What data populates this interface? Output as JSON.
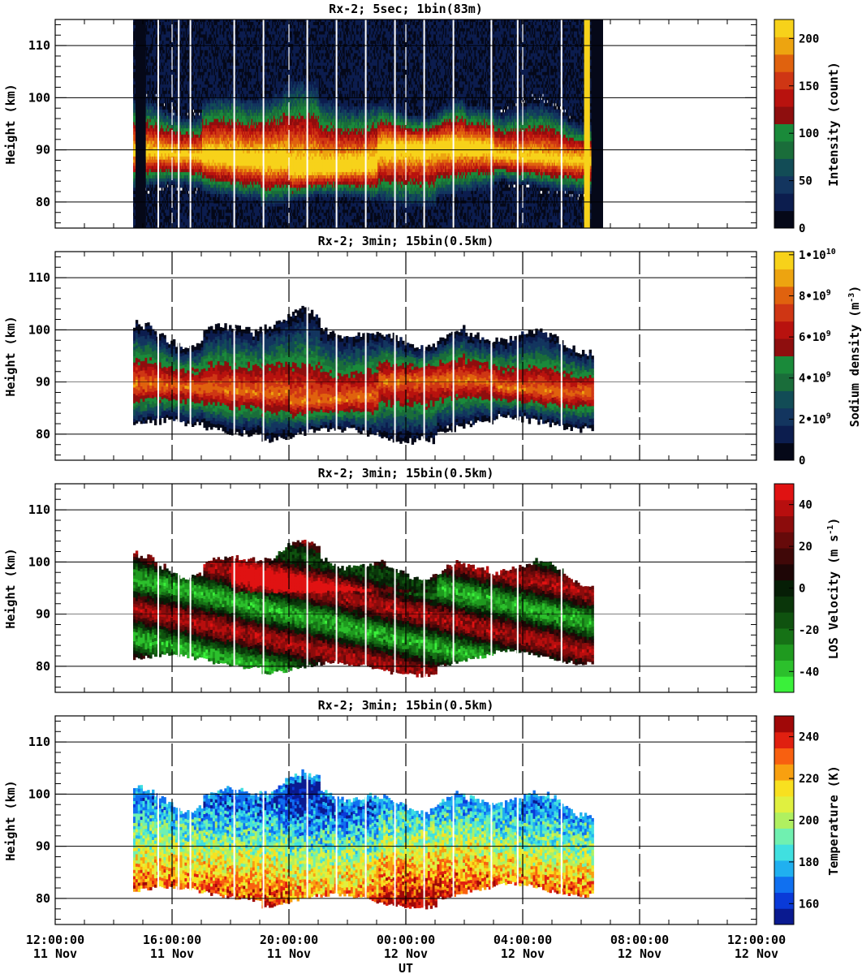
{
  "chart_data": [
    {
      "type": "heatmap",
      "title": "Rx-2;  5sec; 1bin(83m)",
      "ylabel": "Height (km)",
      "ylim": [
        75,
        115
      ],
      "yticks": [
        "80",
        "90",
        "100",
        "110"
      ],
      "colorbar": {
        "label": "Intensity (count)",
        "ticks": [
          "0",
          "50",
          "100",
          "150",
          "200"
        ],
        "colors": [
          "#050818",
          "#0c1d4e",
          "#13355f",
          "#124c56",
          "#1a6d3a",
          "#1a8a3a",
          "#8e0e0e",
          "#b8120e",
          "#cf3614",
          "#e0620e",
          "#eda410",
          "#f7d21a"
        ]
      },
      "data_window": [
        "14:40:00",
        "06:25:00"
      ]
    },
    {
      "type": "heatmap",
      "title": "Rx-2; 3min; 15bin(0.5km)",
      "ylabel": "Height (km)",
      "ylim": [
        75,
        115
      ],
      "yticks": [
        "80",
        "90",
        "100",
        "110"
      ],
      "colorbar": {
        "label_main": "Sodium density (m",
        "label_sup": "-3",
        "label_end": ")",
        "ticks": [
          {
            "base": "0",
            "exp": ""
          },
          {
            "base": "2•10",
            "exp": "9"
          },
          {
            "base": "4•10",
            "exp": "9"
          },
          {
            "base": "6•10",
            "exp": "9"
          },
          {
            "base": "8•10",
            "exp": "9"
          },
          {
            "base": "1•10",
            "exp": "10"
          }
        ],
        "colors": [
          "#050818",
          "#0c1d4e",
          "#13355f",
          "#124c56",
          "#1a6d3a",
          "#1a8a3a",
          "#8e0e0e",
          "#b8120e",
          "#cf3614",
          "#e0620e",
          "#eda410",
          "#f7d21a"
        ]
      },
      "data_window": [
        "14:40:00",
        "06:25:00"
      ]
    },
    {
      "type": "heatmap",
      "title": "Rx-2; 3min; 15bin(0.5km)",
      "ylabel": "Height (km)",
      "ylim": [
        75,
        115
      ],
      "yticks": [
        "80",
        "90",
        "100",
        "110"
      ],
      "colorbar": {
        "label_main": "LOS Velocity (m s",
        "label_sup": "-1",
        "label_end": ")",
        "ticks": [
          "-40",
          "-20",
          "0",
          "20",
          "40"
        ],
        "colors": [
          "#3af03a",
          "#2cc02c",
          "#1f9a1f",
          "#167216",
          "#0f520f",
          "#0a360a",
          "#061e06",
          "#1e0606",
          "#400808",
          "#660a0a",
          "#8c0c0c",
          "#b80e0e",
          "#e01212"
        ]
      },
      "data_window": [
        "14:40:00",
        "06:25:00"
      ]
    },
    {
      "type": "heatmap",
      "title": "Rx-2; 3min; 15bin(0.5km)",
      "ylabel": "Height (km)",
      "ylim": [
        75,
        115
      ],
      "yticks": [
        "80",
        "90",
        "100",
        "110"
      ],
      "xlabel": "UT",
      "xticks": [
        {
          "time": "12:00:00",
          "date": "11 Nov"
        },
        {
          "time": "16:00:00",
          "date": "11 Nov"
        },
        {
          "time": "20:00:00",
          "date": "11 Nov"
        },
        {
          "time": "00:00:00",
          "date": "12 Nov"
        },
        {
          "time": "04:00:00",
          "date": "12 Nov"
        },
        {
          "time": "08:00:00",
          "date": "12 Nov"
        },
        {
          "time": "12:00:00",
          "date": "12 Nov"
        }
      ],
      "colorbar": {
        "label": "Temperature (K)",
        "ticks": [
          "160",
          "180",
          "200",
          "220",
          "240"
        ],
        "colors": [
          "#0a1a90",
          "#0a3ad8",
          "#1070f0",
          "#20b0f0",
          "#40e0e0",
          "#70f0b0",
          "#b0f060",
          "#e0f040",
          "#f8e020",
          "#f8a010",
          "#f86010",
          "#e02010",
          "#a00808"
        ]
      },
      "data_window": [
        "14:40:00",
        "06:25:00"
      ]
    }
  ]
}
